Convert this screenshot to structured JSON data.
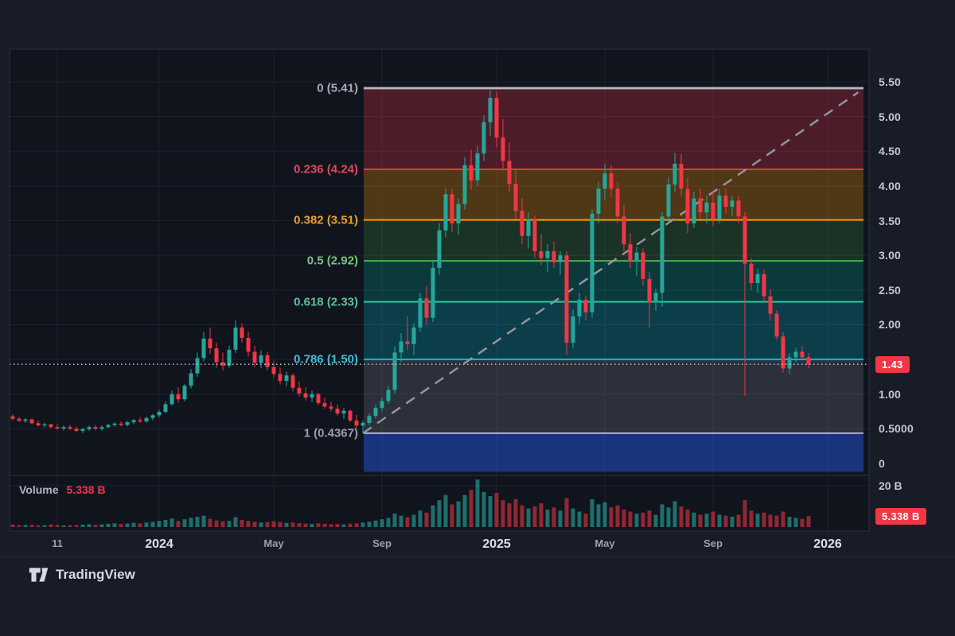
{
  "branding": {
    "name": "TradingView"
  },
  "legend": {
    "title": "Volume",
    "value": "5.338 B"
  },
  "chart_data": {
    "type": "candlestick",
    "title": "Price chart with Fibonacci retracement, volume pane and trendline",
    "legend_position": "volume pane top-left",
    "grid": true,
    "price_axis": {
      "range": [
        0,
        5.5
      ],
      "ticks": [
        {
          "label": "5.50",
          "price": 5.5
        },
        {
          "label": "5.00",
          "price": 5.0
        },
        {
          "label": "4.50",
          "price": 4.5
        },
        {
          "label": "4.00",
          "price": 4.0
        },
        {
          "label": "3.50",
          "price": 3.5
        },
        {
          "label": "3.00",
          "price": 3.0
        },
        {
          "label": "2.50",
          "price": 2.5
        },
        {
          "label": "2.00",
          "price": 2.0
        },
        {
          "label": "1.00",
          "price": 1.0
        },
        {
          "label": "0.5000",
          "price": 0.5
        },
        {
          "label": "0",
          "price": 0.0
        }
      ],
      "current": {
        "label": "1.43",
        "price": 1.43,
        "color": "#f23645"
      }
    },
    "time_axis": {
      "ticks": [
        {
          "label": "11",
          "index": 7,
          "major": false
        },
        {
          "label": "2024",
          "index": 23,
          "major": true
        },
        {
          "label": "May",
          "index": 41,
          "major": false
        },
        {
          "label": "Sep",
          "index": 58,
          "major": false
        },
        {
          "label": "2025",
          "index": 76,
          "major": true
        },
        {
          "label": "May",
          "index": 93,
          "major": false
        },
        {
          "label": "Sep",
          "index": 110,
          "major": false
        },
        {
          "label": "2026",
          "index": 128,
          "major": true
        }
      ]
    },
    "volume_axis": {
      "tick": {
        "label": "20 B",
        "value": 20
      },
      "current": {
        "label": "5.338 B",
        "value": 5.338,
        "color": "#f23645"
      }
    },
    "fib": {
      "start_index": 55,
      "anchor_high": 5.41,
      "anchor_low": 0.4367,
      "levels": [
        {
          "label": "0 (5.41)",
          "price": 5.41,
          "line_color": "#b2b5be",
          "label_color": "#a9acb6",
          "width": 3
        },
        {
          "label": "0.236 (4.24)",
          "price": 4.24,
          "line_color": "#f23645",
          "label_color": "#e0485c",
          "width": 2
        },
        {
          "label": "0.382 (3.51)",
          "price": 3.51,
          "line_color": "#ff9800",
          "label_color": "#e5a02e",
          "width": 2
        },
        {
          "label": "0.5 (2.92)",
          "price": 2.92,
          "line_color": "#4caf50",
          "label_color": "#7bc47f",
          "width": 2
        },
        {
          "label": "0.618 (2.33)",
          "price": 2.33,
          "line_color": "#23c8a0",
          "label_color": "#5fbf9f",
          "width": 2
        },
        {
          "label": "0.786 (1.50)",
          "price": 1.5,
          "line_color": "#00bcd4",
          "label_color": "#3fc1d6",
          "width": 2
        },
        {
          "label": "1 (0.4367)",
          "price": 0.4367,
          "line_color": "#b2b5be",
          "label_color": "#9b9eaa",
          "width": 2
        }
      ],
      "bands": [
        {
          "from": 5.41,
          "to": 4.24,
          "fill": "rgba(242,54,69,0.27)"
        },
        {
          "from": 4.24,
          "to": 3.51,
          "fill": "rgba(255,152,0,0.27)"
        },
        {
          "from": 3.51,
          "to": 2.92,
          "fill": "rgba(76,175,80,0.20)"
        },
        {
          "from": 2.92,
          "to": 2.33,
          "fill": "rgba(0,150,136,0.30)"
        },
        {
          "from": 2.33,
          "to": 1.5,
          "fill": "rgba(0,188,212,0.25)"
        },
        {
          "from": 1.5,
          "to": 0.4367,
          "fill": "rgba(135,140,155,0.24)"
        },
        {
          "from": 0.4367,
          "to": -0.12,
          "fill": "rgba(41,98,255,0.42)"
        }
      ]
    },
    "trendline": {
      "from_index": 55,
      "from_price": 0.4367,
      "to_index": 132.8,
      "to_price": 5.35,
      "style": "dashed",
      "color": "#9094a0"
    },
    "price_line": {
      "price": 1.43,
      "style": "dotted",
      "color": "#cdd1da"
    },
    "colors": {
      "up": "#26a69a",
      "down": "#f23645",
      "volume_up": "rgba(38,166,154,0.62)",
      "volume_down": "rgba(242,54,69,0.58)",
      "grid": "#1c2230",
      "plot_bg": "#10141d",
      "panel_border": "#2c3140",
      "pane_divider": "#2a2f3c"
    },
    "candles": [
      [
        0.68,
        0.71,
        0.62,
        0.645
      ],
      [
        0.645,
        0.67,
        0.6,
        0.615
      ],
      [
        0.615,
        0.655,
        0.585,
        0.635
      ],
      [
        0.635,
        0.645,
        0.565,
        0.58
      ],
      [
        0.58,
        0.615,
        0.535,
        0.55
      ],
      [
        0.55,
        0.59,
        0.52,
        0.565
      ],
      [
        0.565,
        0.575,
        0.505,
        0.525
      ],
      [
        0.525,
        0.565,
        0.49,
        0.505
      ],
      [
        0.505,
        0.545,
        0.475,
        0.525
      ],
      [
        0.525,
        0.555,
        0.485,
        0.5
      ],
      [
        0.5,
        0.53,
        0.455,
        0.47
      ],
      [
        0.47,
        0.515,
        0.44,
        0.495
      ],
      [
        0.495,
        0.545,
        0.47,
        0.525
      ],
      [
        0.525,
        0.555,
        0.48,
        0.5
      ],
      [
        0.5,
        0.545,
        0.475,
        0.525
      ],
      [
        0.525,
        0.575,
        0.505,
        0.555
      ],
      [
        0.555,
        0.595,
        0.525,
        0.575
      ],
      [
        0.575,
        0.605,
        0.535,
        0.555
      ],
      [
        0.555,
        0.615,
        0.535,
        0.595
      ],
      [
        0.595,
        0.645,
        0.565,
        0.625
      ],
      [
        0.625,
        0.665,
        0.585,
        0.605
      ],
      [
        0.605,
        0.675,
        0.585,
        0.655
      ],
      [
        0.655,
        0.715,
        0.625,
        0.695
      ],
      [
        0.695,
        0.775,
        0.665,
        0.745
      ],
      [
        0.745,
        0.895,
        0.725,
        0.855
      ],
      [
        0.855,
        1.05,
        0.835,
        1.0
      ],
      [
        1.0,
        1.1,
        0.875,
        0.925
      ],
      [
        0.925,
        1.15,
        0.895,
        1.12
      ],
      [
        1.12,
        1.36,
        1.08,
        1.3
      ],
      [
        1.3,
        1.6,
        1.25,
        1.52
      ],
      [
        1.52,
        1.9,
        1.47,
        1.8
      ],
      [
        1.8,
        1.96,
        1.58,
        1.66
      ],
      [
        1.66,
        1.74,
        1.38,
        1.46
      ],
      [
        1.46,
        1.6,
        1.34,
        1.41
      ],
      [
        1.41,
        1.7,
        1.38,
        1.64
      ],
      [
        1.64,
        2.06,
        1.59,
        1.96
      ],
      [
        1.96,
        2.02,
        1.74,
        1.81
      ],
      [
        1.81,
        1.9,
        1.54,
        1.61
      ],
      [
        1.61,
        1.7,
        1.39,
        1.45
      ],
      [
        1.45,
        1.63,
        1.37,
        1.56
      ],
      [
        1.56,
        1.61,
        1.34,
        1.39
      ],
      [
        1.39,
        1.48,
        1.24,
        1.29
      ],
      [
        1.29,
        1.38,
        1.14,
        1.19
      ],
      [
        1.19,
        1.32,
        1.11,
        1.27
      ],
      [
        1.27,
        1.3,
        1.04,
        1.09
      ],
      [
        1.09,
        1.18,
        0.97,
        1.01
      ],
      [
        1.01,
        1.1,
        0.91,
        0.95
      ],
      [
        0.95,
        1.05,
        0.89,
        1.0
      ],
      [
        1.0,
        1.02,
        0.84,
        0.87
      ],
      [
        0.87,
        0.95,
        0.79,
        0.82
      ],
      [
        0.82,
        0.89,
        0.75,
        0.79
      ],
      [
        0.79,
        0.85,
        0.69,
        0.72
      ],
      [
        0.72,
        0.8,
        0.64,
        0.76
      ],
      [
        0.76,
        0.78,
        0.59,
        0.62
      ],
      [
        0.62,
        0.7,
        0.51,
        0.545
      ],
      [
        0.545,
        0.62,
        0.4367,
        0.585
      ],
      [
        0.585,
        0.72,
        0.555,
        0.685
      ],
      [
        0.685,
        0.85,
        0.65,
        0.8
      ],
      [
        0.8,
        0.95,
        0.75,
        0.9
      ],
      [
        0.9,
        1.12,
        0.86,
        1.06
      ],
      [
        1.06,
        1.68,
        1.01,
        1.6
      ],
      [
        1.6,
        1.88,
        1.46,
        1.76
      ],
      [
        1.76,
        2.12,
        1.64,
        1.72
      ],
      [
        1.72,
        2.02,
        1.56,
        1.96
      ],
      [
        1.96,
        2.46,
        1.9,
        2.38
      ],
      [
        2.38,
        2.56,
        2.0,
        2.1
      ],
      [
        2.1,
        2.92,
        2.04,
        2.82
      ],
      [
        2.82,
        3.46,
        2.72,
        3.36
      ],
      [
        3.36,
        3.96,
        3.26,
        3.88
      ],
      [
        3.88,
        3.96,
        3.34,
        3.46
      ],
      [
        3.46,
        3.82,
        3.3,
        3.74
      ],
      [
        3.74,
        4.42,
        3.66,
        4.3
      ],
      [
        4.3,
        4.52,
        3.94,
        4.08
      ],
      [
        4.08,
        4.58,
        4.0,
        4.47
      ],
      [
        4.47,
        5.02,
        4.36,
        4.92
      ],
      [
        4.92,
        5.38,
        4.72,
        5.27
      ],
      [
        5.27,
        5.36,
        4.56,
        4.7
      ],
      [
        4.7,
        4.96,
        4.22,
        4.36
      ],
      [
        4.36,
        4.62,
        3.92,
        4.03
      ],
      [
        4.03,
        4.26,
        3.52,
        3.64
      ],
      [
        3.64,
        3.82,
        3.16,
        3.28
      ],
      [
        3.28,
        3.62,
        3.1,
        3.52
      ],
      [
        3.52,
        3.57,
        2.96,
        3.06
      ],
      [
        3.06,
        3.3,
        2.86,
        2.96
      ],
      [
        2.96,
        3.16,
        2.76,
        3.06
      ],
      [
        3.06,
        3.2,
        2.82,
        2.9
      ],
      [
        2.9,
        3.06,
        2.72,
        3.0
      ],
      [
        3.0,
        3.06,
        1.56,
        1.74
      ],
      [
        1.74,
        2.22,
        1.66,
        2.12
      ],
      [
        2.12,
        2.46,
        2.02,
        2.36
      ],
      [
        2.36,
        2.42,
        2.06,
        2.18
      ],
      [
        2.18,
        3.66,
        2.1,
        3.6
      ],
      [
        3.6,
        4.06,
        3.46,
        3.96
      ],
      [
        3.96,
        4.32,
        3.8,
        4.18
      ],
      [
        4.18,
        4.3,
        3.84,
        3.96
      ],
      [
        3.96,
        4.06,
        3.46,
        3.56
      ],
      [
        3.56,
        3.72,
        3.06,
        3.16
      ],
      [
        3.16,
        3.32,
        2.82,
        2.92
      ],
      [
        2.92,
        3.12,
        2.7,
        3.04
      ],
      [
        3.04,
        3.1,
        2.56,
        2.66
      ],
      [
        2.66,
        2.76,
        1.96,
        2.32
      ],
      [
        2.32,
        2.52,
        2.2,
        2.46
      ],
      [
        2.46,
        3.62,
        2.26,
        3.56
      ],
      [
        3.56,
        4.12,
        3.46,
        4.02
      ],
      [
        4.02,
        4.48,
        3.92,
        4.32
      ],
      [
        4.32,
        4.46,
        3.86,
        3.96
      ],
      [
        3.96,
        4.12,
        3.32,
        3.46
      ],
      [
        3.46,
        3.92,
        3.4,
        3.82
      ],
      [
        3.82,
        3.96,
        3.52,
        3.62
      ],
      [
        3.62,
        3.86,
        3.46,
        3.76
      ],
      [
        3.76,
        3.92,
        3.42,
        3.52
      ],
      [
        3.52,
        3.96,
        3.46,
        3.86
      ],
      [
        3.86,
        3.96,
        3.6,
        3.7
      ],
      [
        3.7,
        3.86,
        3.56,
        3.79
      ],
      [
        3.79,
        3.86,
        3.46,
        3.56
      ],
      [
        3.56,
        3.62,
        0.98,
        2.88
      ],
      [
        2.88,
        2.96,
        2.5,
        2.6
      ],
      [
        2.6,
        2.81,
        2.46,
        2.73
      ],
      [
        2.73,
        2.79,
        2.31,
        2.41
      ],
      [
        2.41,
        2.51,
        2.06,
        2.16
      ],
      [
        2.16,
        2.21,
        1.79,
        1.83
      ],
      [
        1.83,
        1.89,
        1.31,
        1.37
      ],
      [
        1.37,
        1.59,
        1.29,
        1.53
      ],
      [
        1.53,
        1.67,
        1.46,
        1.61
      ],
      [
        1.61,
        1.69,
        1.49,
        1.53
      ],
      [
        1.53,
        1.59,
        1.37,
        1.43
      ]
    ],
    "volumes": [
      1.2,
      0.9,
      1.0,
      1.1,
      0.8,
      0.9,
      1.3,
      1.0,
      0.8,
      0.9,
      1.0,
      1.2,
      1.4,
      1.1,
      1.3,
      1.6,
      1.8,
      1.5,
      1.7,
      2.0,
      1.8,
      2.2,
      2.6,
      3.0,
      3.5,
      4.2,
      3.0,
      3.8,
      4.5,
      5.0,
      5.5,
      4.0,
      3.2,
      2.8,
      3.0,
      4.8,
      3.5,
      3.0,
      2.6,
      2.2,
      2.4,
      2.8,
      2.5,
      2.0,
      2.2,
      1.9,
      1.7,
      1.5,
      1.8,
      1.6,
      1.4,
      1.5,
      1.3,
      1.6,
      1.8,
      2.2,
      2.6,
      3.2,
      3.8,
      4.5,
      6.5,
      5.5,
      4.8,
      6.0,
      8.0,
      7.0,
      10.5,
      13.0,
      15.5,
      11.0,
      12.5,
      15.5,
      18.0,
      23.0,
      17.0,
      15.0,
      16.5,
      13.0,
      11.5,
      13.5,
      10.5,
      9.0,
      10.0,
      11.5,
      8.5,
      9.5,
      8.0,
      14.0,
      9.0,
      7.5,
      6.5,
      13.5,
      11.0,
      12.0,
      9.5,
      10.5,
      8.5,
      7.5,
      6.5,
      7.0,
      8.0,
      6.0,
      11.0,
      9.5,
      12.5,
      10.0,
      8.5,
      7.0,
      6.0,
      6.5,
      7.5,
      6.0,
      5.5,
      5.0,
      6.0,
      13.0,
      8.0,
      6.5,
      7.0,
      6.0,
      5.5,
      7.5,
      5.0,
      4.5,
      4.0,
      5.338
    ]
  }
}
